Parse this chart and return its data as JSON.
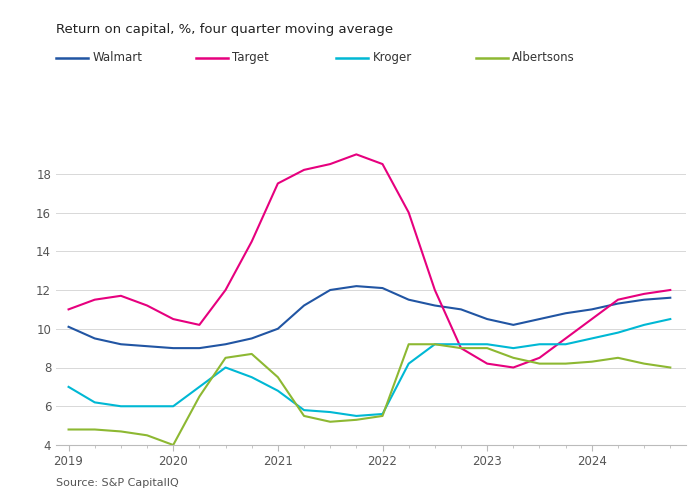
{
  "title": "Return on capital, %, four quarter moving average",
  "source": "Source: S&P CapitalIQ",
  "ylim": [
    4,
    20
  ],
  "yticks": [
    4,
    6,
    8,
    10,
    12,
    14,
    16,
    18
  ],
  "series": {
    "Walmart": {
      "color": "#2155a3",
      "x": [
        2019.0,
        2019.25,
        2019.5,
        2019.75,
        2020.0,
        2020.25,
        2020.5,
        2020.75,
        2021.0,
        2021.25,
        2021.5,
        2021.75,
        2022.0,
        2022.25,
        2022.5,
        2022.75,
        2023.0,
        2023.25,
        2023.5,
        2023.75,
        2024.0,
        2024.25,
        2024.5,
        2024.75
      ],
      "y": [
        10.1,
        9.5,
        9.2,
        9.1,
        9.0,
        9.0,
        9.2,
        9.5,
        10.0,
        11.2,
        12.0,
        12.2,
        12.1,
        11.5,
        11.2,
        11.0,
        10.5,
        10.2,
        10.5,
        10.8,
        11.0,
        11.3,
        11.5,
        11.6
      ]
    },
    "Target": {
      "color": "#e6007e",
      "x": [
        2019.0,
        2019.25,
        2019.5,
        2019.75,
        2020.0,
        2020.25,
        2020.5,
        2020.75,
        2021.0,
        2021.25,
        2021.5,
        2021.75,
        2022.0,
        2022.25,
        2022.5,
        2022.75,
        2023.0,
        2023.25,
        2023.5,
        2023.75,
        2024.0,
        2024.25,
        2024.5,
        2024.75
      ],
      "y": [
        11.0,
        11.5,
        11.7,
        11.2,
        10.5,
        10.2,
        12.0,
        14.5,
        17.5,
        18.2,
        18.5,
        19.0,
        18.5,
        16.0,
        12.0,
        9.0,
        8.2,
        8.0,
        8.5,
        9.5,
        10.5,
        11.5,
        11.8,
        12.0
      ]
    },
    "Kroger": {
      "color": "#00b8d4",
      "x": [
        2019.0,
        2019.25,
        2019.5,
        2019.75,
        2020.0,
        2020.25,
        2020.5,
        2020.75,
        2021.0,
        2021.25,
        2021.5,
        2021.75,
        2022.0,
        2022.25,
        2022.5,
        2022.75,
        2023.0,
        2023.25,
        2023.5,
        2023.75,
        2024.0,
        2024.25,
        2024.5,
        2024.75
      ],
      "y": [
        7.0,
        6.2,
        6.0,
        6.0,
        6.0,
        7.0,
        8.0,
        7.5,
        6.8,
        5.8,
        5.7,
        5.5,
        5.6,
        8.2,
        9.2,
        9.2,
        9.2,
        9.0,
        9.2,
        9.2,
        9.5,
        9.8,
        10.2,
        10.5
      ]
    },
    "Albertsons": {
      "color": "#8db832",
      "x": [
        2019.0,
        2019.25,
        2019.5,
        2019.75,
        2020.0,
        2020.25,
        2020.5,
        2020.75,
        2021.0,
        2021.25,
        2021.5,
        2021.75,
        2022.0,
        2022.25,
        2022.5,
        2022.75,
        2023.0,
        2023.25,
        2023.5,
        2023.75,
        2024.0,
        2024.25,
        2024.5,
        2024.75
      ],
      "y": [
        4.8,
        4.8,
        4.7,
        4.5,
        4.0,
        6.5,
        8.5,
        8.7,
        7.5,
        5.5,
        5.2,
        5.3,
        5.5,
        9.2,
        9.2,
        9.0,
        9.0,
        8.5,
        8.2,
        8.2,
        8.3,
        8.5,
        8.2,
        8.0
      ]
    }
  },
  "xticks": [
    2019,
    2020,
    2021,
    2022,
    2023,
    2024
  ],
  "xlim": [
    2018.88,
    2024.9
  ],
  "background_color": "#ffffff",
  "grid_color": "#d8d8d8",
  "legend_order": [
    "Walmart",
    "Target",
    "Kroger",
    "Albertsons"
  ]
}
